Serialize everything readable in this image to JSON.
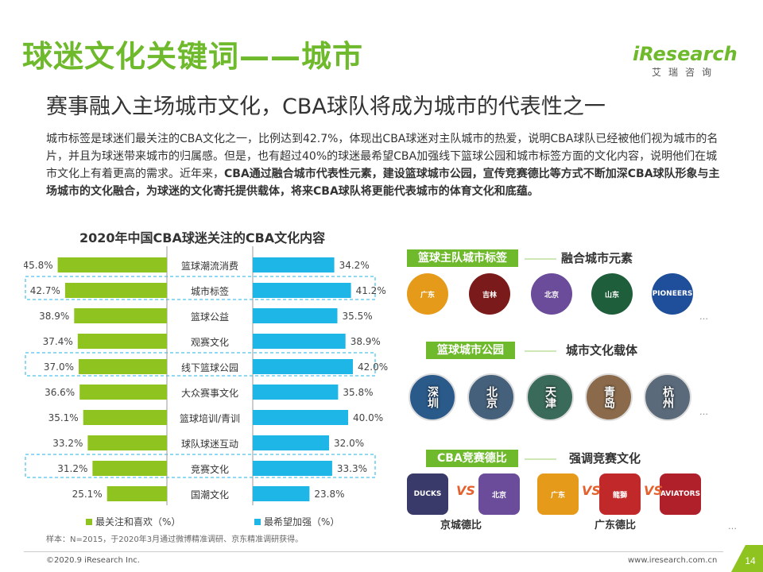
{
  "header": {
    "title": "球迷文化关键词——城市",
    "subtitle": "赛事融入主场城市文化，CBA球队将成为城市的代表性之一",
    "logo_main": "iResearch",
    "logo_sub": "艾瑞咨询"
  },
  "body": {
    "p1": "城市标签是球迷们最关注的CBA文化之一，比例达到42.7%，体现出CBA球迷对主队城市的热爱，说明CBA球队已经被他们视为城市的名片，并且为球迷带来城市的归属感。但是，也有超过40%的球迷最希望CBA加强线下篮球公园和城市标签方面的文化内容，说明他们在城市文化上有着更高的需求。近年来，",
    "p2_bold": "CBA通过融合城市代表性元素，建设篮球城市公园，宣传竞赛德比等方式不断加深CBA球队形象与主场城市的文化融合，为球迷的文化寄托提供载体，将来CBA球队将更能代表城市的体育文化和底蕴。"
  },
  "chart_data": {
    "type": "bar",
    "title": "2020年中国CBA球迷关注的CBA文化内容",
    "categories": [
      "篮球潮流消费",
      "城市标签",
      "篮球公益",
      "观赛文化",
      "线下篮球公园",
      "大众赛事文化",
      "篮球培训/青训",
      "球队球迷互动",
      "竞赛文化",
      "国潮文化"
    ],
    "series": [
      {
        "name": "最关注和喜欢（%）",
        "color": "#8fc31f",
        "values": [
          45.8,
          42.7,
          38.9,
          37.4,
          37.0,
          36.6,
          35.1,
          33.2,
          31.2,
          25.1
        ],
        "labels": [
          "45.8%",
          "42.7%",
          "38.9%",
          "37.4%",
          "37.0%",
          "36.6%",
          "35.1%",
          "33.2%",
          "31.2%",
          "25.1%"
        ]
      },
      {
        "name": "最希望加强（%）",
        "color": "#1db6e6",
        "values": [
          34.2,
          41.2,
          35.5,
          38.9,
          42.0,
          35.8,
          40.0,
          32.0,
          33.3,
          23.8
        ],
        "labels": [
          "34.2%",
          "41.2%",
          "35.5%",
          "38.9%",
          "42.0%",
          "35.8%",
          "40.0%",
          "32.0%",
          "33.3%",
          "23.8%"
        ]
      }
    ],
    "highlighted_categories": [
      "城市标签",
      "线下篮球公园",
      "竞赛文化"
    ],
    "xlim": [
      0,
      50
    ]
  },
  "note": "样本：N=2015，于2020年3月通过微博精准调研、京东精准调研获得。",
  "right_panel": {
    "sections": [
      {
        "pill": "篮球主队城市标签",
        "label": "融合城市元素"
      },
      {
        "pill": "篮球城市公园",
        "label": "城市文化载体"
      },
      {
        "pill": "CBA竞赛德比",
        "label": "强调竞赛文化"
      }
    ],
    "team_logos": [
      {
        "name": "广东",
        "color": "#e69a1a"
      },
      {
        "name": "吉林",
        "color": "#7a1a1a"
      },
      {
        "name": "北京",
        "color": "#6b4c9a"
      },
      {
        "name": "山东",
        "color": "#1e5e3a"
      },
      {
        "name": "PIONEERS",
        "color": "#1f4f9a"
      }
    ],
    "parks": [
      "深圳",
      "北京",
      "天津",
      "青岛",
      "杭州"
    ],
    "park_colors": [
      "#2a5a8a",
      "#45607a",
      "#3a6a5a",
      "#8a6a4a",
      "#5a6a7a"
    ],
    "derby_logos": [
      {
        "name": "DUCKS",
        "color": "#3a3a6a"
      },
      {
        "name": "北京",
        "color": "#6b4c9a"
      },
      {
        "name": "广东",
        "color": "#e69a1a"
      },
      {
        "name": "龍獅",
        "color": "#c0282a"
      },
      {
        "name": "AVIATORS",
        "color": "#b0202a"
      }
    ],
    "vs": "VS",
    "derby_labels": [
      "京城德比",
      "广东德比"
    ],
    "more": "…"
  },
  "footer": {
    "left": "©2020.9 iResearch Inc.",
    "right": "www.iresearch.com.cn",
    "page": "14"
  }
}
